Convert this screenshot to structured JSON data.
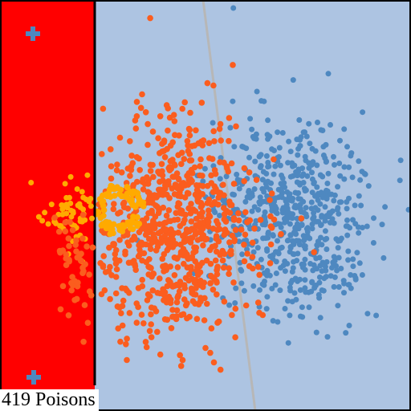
{
  "status": {
    "poison_count": "419",
    "poison_label": "Poisons"
  },
  "colors": {
    "background": "#adc4e2",
    "zone": "#ff0000",
    "zone_border": "#000000",
    "boundary_line": "#b7b7b7",
    "cluster_blue": "#4e88c0",
    "cluster_orange": "#fb5d1e",
    "cluster_gold": "#ffaa00",
    "marker": "#4e88c0"
  },
  "icons": {
    "marker": "plus-marker-icon"
  }
}
